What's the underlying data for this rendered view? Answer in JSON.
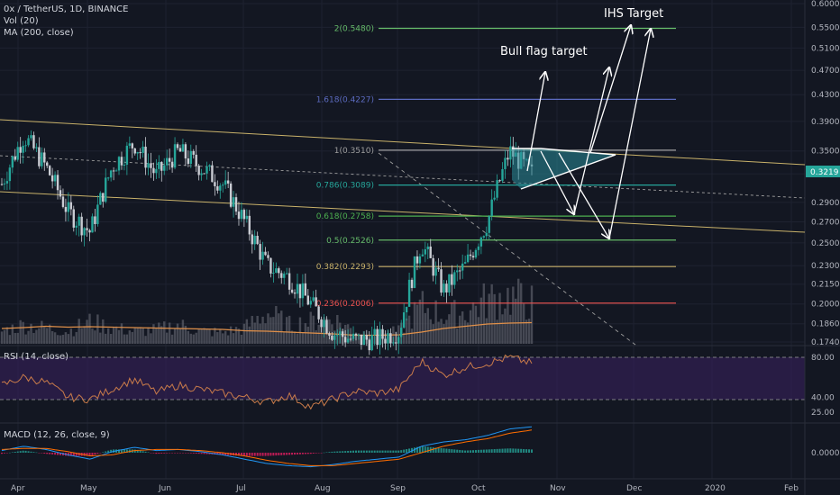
{
  "legend": {
    "symbol_line": "0x / TetherUS, 1D, BINANCE",
    "volume": "Vol (20)",
    "ma": "MA (200, close)",
    "rsi": "RSI (14, close)",
    "macd": "MACD (12, 26, close, 9)"
  },
  "annotations": {
    "ihs_target": "IHS Target",
    "bull_flag_target": "Bull flag target"
  },
  "colors": {
    "background": "#131722",
    "grid": "#1e2230",
    "axis_text": "#b2b5be",
    "up_candle": "#26a69a",
    "down_candle": "#ef5350",
    "candle_body": "#c9ccd3",
    "volume": "#5d6069",
    "ma200": "#e0904a",
    "rsi_line": "#c97b4a",
    "rsi_band": "#3b2060",
    "macd_line": "#2196f3",
    "signal_line": "#ff6d00",
    "trendline": "#c9b26a",
    "arrow": "#ffffff",
    "flag_fill": "#2a8c99"
  },
  "price_axis": {
    "ticks": [
      "0.6000",
      "0.5500",
      "0.5100",
      "0.4700",
      "0.4300",
      "0.3900",
      "0.3500",
      "0.3219",
      "0.2900",
      "0.2700",
      "0.2500",
      "0.2300",
      "0.2150",
      "0.2000",
      "0.1860",
      "0.1740"
    ],
    "current_price": "0.3219"
  },
  "rsi_axis": {
    "ticks": [
      "80.00",
      "40.00",
      "25.00"
    ]
  },
  "macd_axis": {
    "ticks": [
      "0.0000"
    ]
  },
  "time_axis": {
    "ticks": [
      "Apr",
      "May",
      "Jun",
      "Jul",
      "Aug",
      "Sep",
      "Oct",
      "Nov",
      "Dec",
      "2020",
      "Feb"
    ]
  },
  "chart_data": {
    "type": "candlestick",
    "symbol": "0x / TetherUS",
    "interval": "1D",
    "exchange": "BINANCE",
    "y_scale": "log",
    "fib_levels": [
      {
        "label": "2(0.5480)",
        "ratio": 2,
        "price": 0.548,
        "color": "#66bb6a"
      },
      {
        "label": "1.618(0.4227)",
        "ratio": 1.618,
        "price": 0.4227,
        "color": "#5c6bc0"
      },
      {
        "label": "1(0.3510)",
        "ratio": 1,
        "price": 0.351,
        "color": "#9e9e9e"
      },
      {
        "label": "0.786(0.3089)",
        "ratio": 0.786,
        "price": 0.3089,
        "color": "#26a69a"
      },
      {
        "label": "0.618(0.2758)",
        "ratio": 0.618,
        "price": 0.2758,
        "color": "#4caf50"
      },
      {
        "label": "0.5(0.2526)",
        "ratio": 0.5,
        "price": 0.2526,
        "color": "#66bb6a"
      },
      {
        "label": "0.382(0.2293)",
        "ratio": 0.382,
        "price": 0.2293,
        "color": "#c9b26a"
      },
      {
        "label": "0.236(0.2006)",
        "ratio": 0.236,
        "price": 0.2006,
        "color": "#ef5350"
      }
    ],
    "price_path": [
      [
        "Apr",
        0.31
      ],
      [
        "Apr",
        0.37
      ],
      [
        "Apr",
        0.33
      ],
      [
        "May",
        0.28
      ],
      [
        "May",
        0.26
      ],
      [
        "May",
        0.33
      ],
      [
        "May",
        0.36
      ],
      [
        "Jun",
        0.32
      ],
      [
        "Jun",
        0.35
      ],
      [
        "Jun",
        0.33
      ],
      [
        "Jul",
        0.31
      ],
      [
        "Jul",
        0.27
      ],
      [
        "Jul",
        0.23
      ],
      [
        "Aug",
        0.22
      ],
      [
        "Aug",
        0.2
      ],
      [
        "Aug",
        0.18
      ],
      [
        "Aug",
        0.175
      ],
      [
        "Sep",
        0.176
      ],
      [
        "Sep",
        0.181
      ],
      [
        "Sep",
        0.25
      ],
      [
        "Sep",
        0.21
      ],
      [
        "Oct",
        0.23
      ],
      [
        "Oct",
        0.27
      ],
      [
        "Oct",
        0.35
      ],
      [
        "Oct",
        0.3219
      ]
    ],
    "volume_path": [
      0.2,
      0.3,
      0.25,
      0.2,
      0.35,
      0.25,
      0.2,
      0.22,
      0.3,
      0.2,
      0.18,
      0.25,
      0.5,
      0.3,
      0.35,
      0.4,
      0.2,
      0.15,
      0.2,
      0.6,
      0.45,
      0.5,
      0.7,
      0.75,
      0.65
    ],
    "ma200_path": [
      0.2,
      0.22,
      0.25,
      0.23,
      0.24,
      0.23,
      0.22,
      0.21,
      0.2,
      0.19,
      0.18,
      0.15,
      0.14,
      0.12,
      0.1,
      0.08,
      0.05,
      0.05,
      0.06,
      0.12,
      0.2,
      0.25,
      0.3,
      0.32,
      0.33
    ],
    "rsi_path": [
      52,
      60,
      55,
      40,
      38,
      48,
      58,
      45,
      52,
      48,
      44,
      40,
      35,
      42,
      30,
      38,
      46,
      44,
      48,
      76,
      62,
      70,
      74,
      80,
      74
    ],
    "macd_path": [
      0.002,
      0.006,
      0.003,
      -0.002,
      -0.006,
      0.001,
      0.005,
      0.002,
      0.003,
      0.001,
      -0.002,
      -0.006,
      -0.01,
      -0.012,
      -0.013,
      -0.011,
      -0.008,
      -0.006,
      -0.004,
      0.006,
      0.01,
      0.012,
      0.016,
      0.022,
      0.024
    ],
    "signal_path": [
      0.003,
      0.004,
      0.004,
      0.001,
      -0.003,
      -0.002,
      0.002,
      0.003,
      0.003,
      0.002,
      0.0,
      -0.003,
      -0.007,
      -0.01,
      -0.012,
      -0.012,
      -0.01,
      -0.008,
      -0.006,
      0.0,
      0.006,
      0.01,
      0.013,
      0.018,
      0.021
    ]
  }
}
